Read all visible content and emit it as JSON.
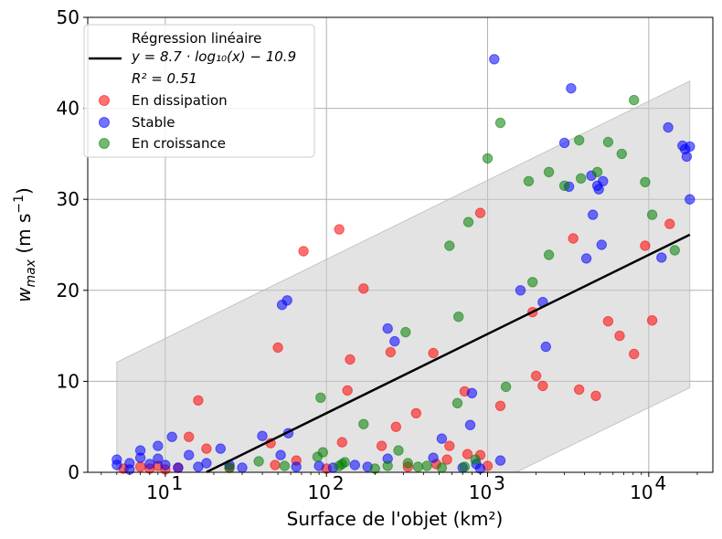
{
  "chart_data": {
    "type": "scatter",
    "xscale": "log",
    "xlim": [
      3.3,
      25000
    ],
    "ylim": [
      0,
      50
    ],
    "grid": true,
    "legend_position": "top-left",
    "xlabel": "Surface de l'objet (km²)",
    "ylabel_text": "w",
    "ylabel_sub": "max",
    "ylabel_unit": " (m s",
    "ylabel_exp": "−1",
    "ylabel_close": ")",
    "x_ticks": [
      {
        "value": 10,
        "base": "10",
        "exp": "1"
      },
      {
        "value": 100,
        "base": "10",
        "exp": "2"
      },
      {
        "value": 1000,
        "base": "10",
        "exp": "3"
      },
      {
        "value": 10000,
        "base": "10",
        "exp": "4"
      }
    ],
    "y_ticks": [
      0,
      10,
      20,
      30,
      40,
      50
    ],
    "regression": {
      "legend_label": "Régression linéaire",
      "equation_label": "y = 8.7 · log₁₀(x) − 10.9",
      "r2_label": "R² = 0.51",
      "slope": 8.7,
      "intercept": -10.9,
      "x_range": [
        18,
        18000
      ],
      "color": "#000000"
    },
    "confidence_band": {
      "color": "#cccccc",
      "points": [
        [
          5,
          12.1
        ],
        [
          18000,
          43.0
        ],
        [
          18000,
          9.3
        ],
        [
          1500,
          0
        ],
        [
          5,
          0
        ]
      ]
    },
    "series": [
      {
        "name": "En dissipation",
        "color": "#ff0000",
        "points": [
          [
            5.5,
            0.4
          ],
          [
            7,
            0.6
          ],
          [
            8,
            0.4
          ],
          [
            9,
            0.7
          ],
          [
            10,
            0.3
          ],
          [
            12,
            0.5
          ],
          [
            14,
            3.9
          ],
          [
            16,
            7.9
          ],
          [
            18,
            2.6
          ],
          [
            25,
            0.5
          ],
          [
            45,
            3.2
          ],
          [
            48,
            0.8
          ],
          [
            50,
            13.7
          ],
          [
            65,
            1.3
          ],
          [
            72,
            24.3
          ],
          [
            100,
            0.4
          ],
          [
            120,
            26.7
          ],
          [
            125,
            3.3
          ],
          [
            135,
            9.0
          ],
          [
            140,
            12.4
          ],
          [
            170,
            20.2
          ],
          [
            220,
            2.9
          ],
          [
            250,
            13.2
          ],
          [
            270,
            5.0
          ],
          [
            320,
            0.6
          ],
          [
            360,
            6.5
          ],
          [
            460,
            13.1
          ],
          [
            560,
            1.4
          ],
          [
            580,
            2.9
          ],
          [
            720,
            8.9
          ],
          [
            750,
            2.0
          ],
          [
            900,
            28.5
          ],
          [
            900,
            1.9
          ],
          [
            1200,
            7.3
          ],
          [
            1900,
            17.6
          ],
          [
            2000,
            10.6
          ],
          [
            2200,
            9.5
          ],
          [
            3400,
            25.7
          ],
          [
            3700,
            9.1
          ],
          [
            4700,
            8.4
          ],
          [
            5600,
            16.6
          ],
          [
            6600,
            15.0
          ],
          [
            8100,
            13.0
          ],
          [
            9500,
            24.9
          ],
          [
            10500,
            16.7
          ],
          [
            13500,
            27.3
          ],
          [
            1000,
            0.7
          ],
          [
            480,
            0.9
          ]
        ]
      },
      {
        "name": "Stable",
        "color": "#0000ff",
        "points": [
          [
            5,
            1.4
          ],
          [
            5,
            0.8
          ],
          [
            6,
            1.0
          ],
          [
            6,
            0.3
          ],
          [
            7,
            2.4
          ],
          [
            7,
            1.6
          ],
          [
            8,
            0.9
          ],
          [
            9,
            2.9
          ],
          [
            9,
            1.5
          ],
          [
            10,
            0.8
          ],
          [
            11,
            3.9
          ],
          [
            12,
            0.5
          ],
          [
            14,
            1.9
          ],
          [
            16,
            0.6
          ],
          [
            18,
            1.0
          ],
          [
            22,
            2.6
          ],
          [
            25,
            0.8
          ],
          [
            30,
            0.5
          ],
          [
            40,
            4.0
          ],
          [
            52,
            1.9
          ],
          [
            53,
            18.4
          ],
          [
            57,
            18.9
          ],
          [
            58,
            4.3
          ],
          [
            65,
            0.6
          ],
          [
            90,
            0.7
          ],
          [
            110,
            0.5
          ],
          [
            150,
            0.8
          ],
          [
            180,
            0.6
          ],
          [
            240,
            15.8
          ],
          [
            240,
            1.5
          ],
          [
            265,
            14.4
          ],
          [
            460,
            1.6
          ],
          [
            520,
            3.7
          ],
          [
            700,
            0.5
          ],
          [
            780,
            5.2
          ],
          [
            800,
            8.7
          ],
          [
            850,
            0.9
          ],
          [
            900,
            0.4
          ],
          [
            1100,
            45.4
          ],
          [
            1200,
            1.3
          ],
          [
            1600,
            20.0
          ],
          [
            2200,
            18.7
          ],
          [
            2300,
            13.8
          ],
          [
            3000,
            36.2
          ],
          [
            3200,
            31.4
          ],
          [
            3300,
            42.2
          ],
          [
            4100,
            23.5
          ],
          [
            4400,
            32.6
          ],
          [
            4500,
            28.3
          ],
          [
            4800,
            31.5
          ],
          [
            4900,
            31.1
          ],
          [
            5100,
            25.0
          ],
          [
            5200,
            32.0
          ],
          [
            12000,
            23.6
          ],
          [
            13200,
            37.9
          ],
          [
            16200,
            35.9
          ],
          [
            16800,
            35.5
          ],
          [
            17200,
            34.7
          ],
          [
            18000,
            30.0
          ],
          [
            18000,
            35.8
          ]
        ]
      },
      {
        "name": "En croissance",
        "color": "#008000",
        "points": [
          [
            25,
            0.5
          ],
          [
            38,
            1.2
          ],
          [
            55,
            0.7
          ],
          [
            88,
            1.7
          ],
          [
            92,
            8.2
          ],
          [
            95,
            2.2
          ],
          [
            120,
            0.7
          ],
          [
            125,
            0.9
          ],
          [
            130,
            1.1
          ],
          [
            170,
            5.3
          ],
          [
            200,
            0.4
          ],
          [
            240,
            0.7
          ],
          [
            280,
            2.4
          ],
          [
            310,
            15.4
          ],
          [
            320,
            1.0
          ],
          [
            370,
            0.6
          ],
          [
            420,
            0.7
          ],
          [
            520,
            0.5
          ],
          [
            580,
            24.9
          ],
          [
            650,
            7.6
          ],
          [
            660,
            17.1
          ],
          [
            720,
            0.6
          ],
          [
            760,
            27.5
          ],
          [
            840,
            1.4
          ],
          [
            1000,
            34.5
          ],
          [
            1200,
            38.4
          ],
          [
            1300,
            9.4
          ],
          [
            1800,
            32.0
          ],
          [
            1900,
            20.9
          ],
          [
            2400,
            33.0
          ],
          [
            2400,
            23.9
          ],
          [
            3000,
            31.5
          ],
          [
            3700,
            36.5
          ],
          [
            3800,
            32.3
          ],
          [
            4800,
            33.0
          ],
          [
            5600,
            36.3
          ],
          [
            6800,
            35.0
          ],
          [
            8100,
            40.9
          ],
          [
            9500,
            31.9
          ],
          [
            10500,
            28.3
          ],
          [
            14500,
            24.4
          ]
        ]
      }
    ]
  }
}
